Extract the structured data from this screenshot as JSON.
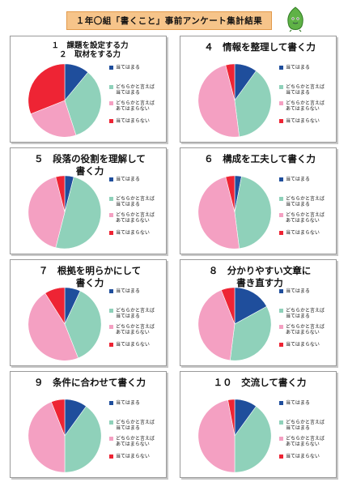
{
  "header": {
    "title": "１年〇組「書くこと」事前アンケート集計結果"
  },
  "colors": {
    "c1": "#1f4e9c",
    "c2": "#8fd1ba",
    "c3": "#f4a0c2",
    "c4": "#ee2434"
  },
  "legend_labels": [
    "当てはまる",
    "どちらかと言えば\n当てはまる",
    "どちらかと言えば\nあてはまらない",
    "当てはまらない"
  ],
  "chart_data": [
    {
      "type": "pie",
      "title": "１　課題を設定する力\n２　取材をする力",
      "values": [
        11,
        34,
        24,
        31
      ]
    },
    {
      "type": "pie",
      "title": "４　情報を整理して書く力",
      "values": [
        10,
        38,
        48,
        4
      ]
    },
    {
      "type": "pie",
      "title": "５　段落の役割を理解して\n書く力",
      "values": [
        4,
        50,
        42,
        4
      ]
    },
    {
      "type": "pie",
      "title": "６　構成を工夫して書く力",
      "values": [
        3,
        45,
        48,
        4
      ]
    },
    {
      "type": "pie",
      "title": "７　根拠を明らかにして\n書く力",
      "values": [
        7,
        37,
        47,
        9
      ]
    },
    {
      "type": "pie",
      "title": "８　分かりやすい文章に\n書き直す力",
      "values": [
        17,
        35,
        42,
        6
      ]
    },
    {
      "type": "pie",
      "title": "９　条件に合わせて書く力",
      "values": [
        10,
        40,
        44,
        6
      ]
    },
    {
      "type": "pie",
      "title": "１０　交流して書く力",
      "values": [
        10,
        40,
        47,
        3
      ]
    }
  ]
}
